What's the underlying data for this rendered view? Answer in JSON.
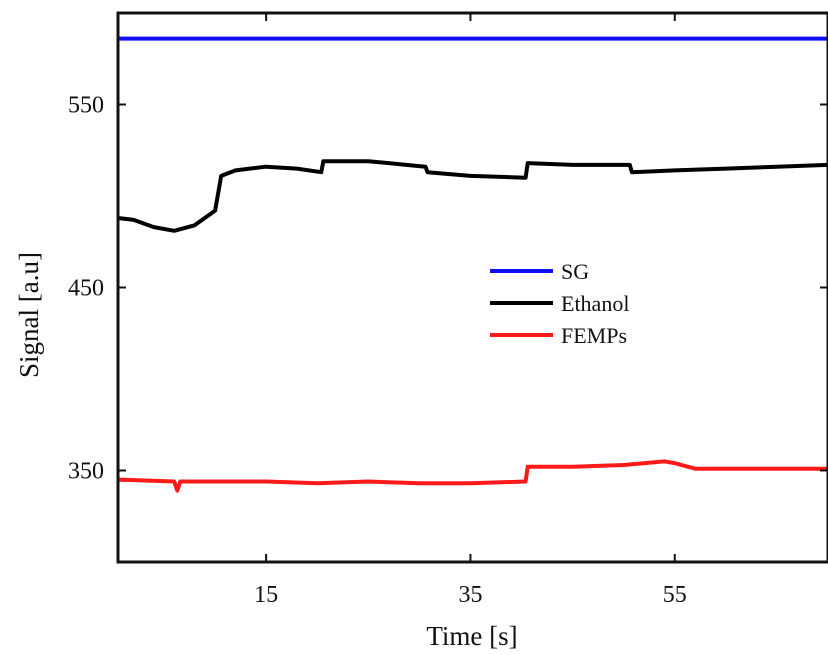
{
  "chart_data": {
    "type": "line",
    "xlabel": "Time [s]",
    "ylabel": "Signal [a.u]",
    "xlim": [
      0.5,
      70
    ],
    "ylim": [
      300,
      600
    ],
    "xticks": [
      15,
      35,
      55
    ],
    "yticks": [
      350,
      450,
      550
    ],
    "grid": false,
    "legend_position": "center-right",
    "series": [
      {
        "name": "SG",
        "color": "#1010ff",
        "x": [
          0.5,
          10,
          20,
          30,
          40,
          50,
          60,
          70
        ],
        "y": [
          586,
          586,
          586,
          586,
          586,
          586,
          586,
          586
        ]
      },
      {
        "name": "Ethanol",
        "color": "#000000",
        "x": [
          0.5,
          2,
          4,
          6,
          8,
          10,
          10.6,
          12,
          15,
          18,
          20.4,
          20.6,
          25,
          30.6,
          30.8,
          35,
          40.4,
          40.6,
          45,
          50.6,
          50.8,
          55,
          60,
          65,
          70
        ],
        "y": [
          488,
          487,
          483,
          481,
          484,
          492,
          511,
          514,
          516,
          515,
          513,
          519,
          519,
          516,
          513,
          511,
          510,
          518,
          517,
          517,
          513,
          514,
          515,
          516,
          517
        ]
      },
      {
        "name": "FEMPs",
        "color": "#ff1a1a",
        "x": [
          0.5,
          6,
          6.3,
          6.6,
          10,
          15,
          20,
          25,
          30,
          35,
          40.4,
          40.6,
          45,
          50,
          54,
          55,
          57,
          60,
          65,
          70
        ],
        "y": [
          345,
          344,
          339,
          344,
          344,
          344,
          343,
          344,
          343,
          343,
          344,
          352,
          352,
          353,
          355,
          354,
          351,
          351,
          351,
          351
        ]
      }
    ]
  }
}
